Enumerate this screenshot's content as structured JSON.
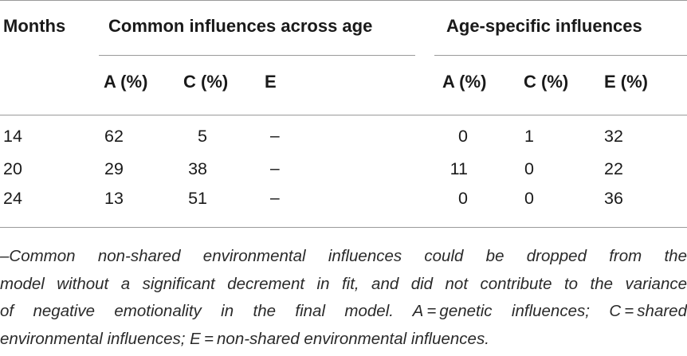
{
  "table": {
    "header": {
      "months": "Months",
      "common_group": "Common influences across age",
      "specific_group": "Age-specific influences",
      "common_a": "A (%)",
      "common_c": "C (%)",
      "common_e": "E",
      "specific_a": "A (%)",
      "specific_c": "C (%)",
      "specific_e": "E (%)"
    },
    "rows": [
      {
        "month": "14",
        "common_a": "62",
        "common_c": "5",
        "common_e": "–",
        "specific_a": "0",
        "specific_c": "1",
        "specific_e": "32"
      },
      {
        "month": "20",
        "common_a": "29",
        "common_c": "38",
        "common_e": "–",
        "specific_a": "11",
        "specific_c": "0",
        "specific_e": "22"
      },
      {
        "month": "24",
        "common_a": "13",
        "common_c": "51",
        "common_e": "–",
        "specific_a": "0",
        "specific_c": "0",
        "specific_e": "36"
      }
    ],
    "footnote_lines": [
      "–Common non-shared environmental influences could be dropped from the",
      "model without a significant decrement in fit, and did not contribute to the variance",
      "of negative emotionality in the final model. A = genetic influences; C = shared",
      "environmental influences; E = non-shared environmental influences."
    ]
  }
}
